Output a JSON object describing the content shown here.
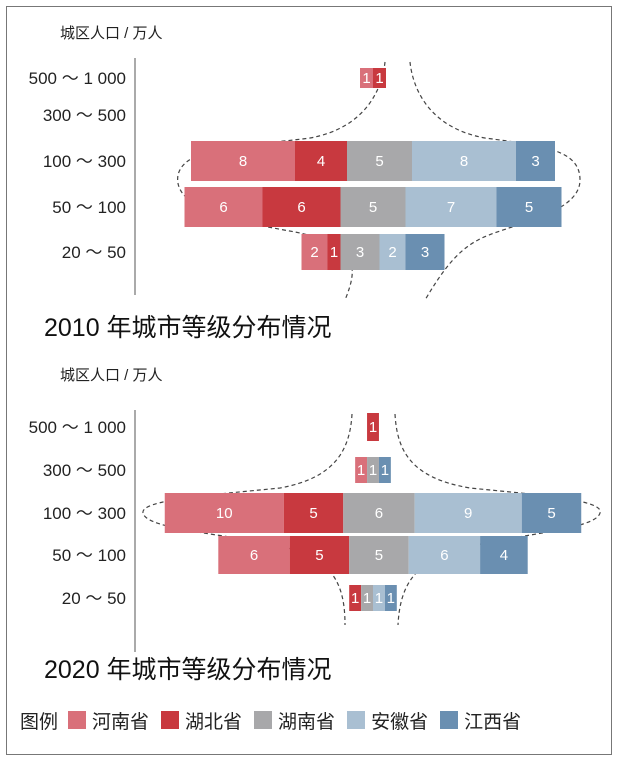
{
  "colors": {
    "河南省": "#d9707a",
    "湖北省": "#c8393f",
    "湖南省": "#a8a8aa",
    "安徽省": "#a9bfd2",
    "江西省": "#6a8fb1"
  },
  "legend": {
    "title": "图例",
    "items": [
      "河南省",
      "湖北省",
      "湖南省",
      "安徽省",
      "江西省"
    ]
  },
  "chart_data": [
    {
      "type": "bar",
      "stacked": true,
      "orientation": "horizontal",
      "title": "2010 年城市等级分布情况",
      "ylabel": "城区人口 / 万人",
      "categories": [
        "500 ～ 1 000",
        "300 ～ 500",
        "100 ～ 300",
        "50 ～ 100",
        "20 ～ 50"
      ],
      "series": [
        {
          "name": "河南省",
          "values": [
            1,
            0,
            8,
            6,
            2
          ]
        },
        {
          "name": "湖北省",
          "values": [
            1,
            0,
            4,
            6,
            1
          ]
        },
        {
          "name": "湖南省",
          "values": [
            0,
            0,
            5,
            5,
            3
          ]
        },
        {
          "name": "安徽省",
          "values": [
            0,
            0,
            8,
            7,
            2
          ]
        },
        {
          "name": "江西省",
          "values": [
            0,
            0,
            3,
            5,
            3
          ]
        }
      ]
    },
    {
      "type": "bar",
      "stacked": true,
      "orientation": "horizontal",
      "title": "2020 年城市等级分布情况",
      "ylabel": "城区人口 / 万人",
      "categories": [
        "500 ～ 1 000",
        "300 ～ 500",
        "100 ～ 300",
        "50 ～ 100",
        "20 ～ 50"
      ],
      "series": [
        {
          "name": "河南省",
          "values": [
            0,
            1,
            10,
            6,
            0
          ]
        },
        {
          "name": "湖北省",
          "values": [
            1,
            0,
            5,
            5,
            1
          ]
        },
        {
          "name": "湖南省",
          "values": [
            0,
            1,
            6,
            5,
            1
          ]
        },
        {
          "name": "安徽省",
          "values": [
            0,
            0,
            9,
            6,
            1
          ]
        },
        {
          "name": "江西省",
          "values": [
            0,
            1,
            5,
            4,
            1
          ]
        }
      ]
    }
  ]
}
